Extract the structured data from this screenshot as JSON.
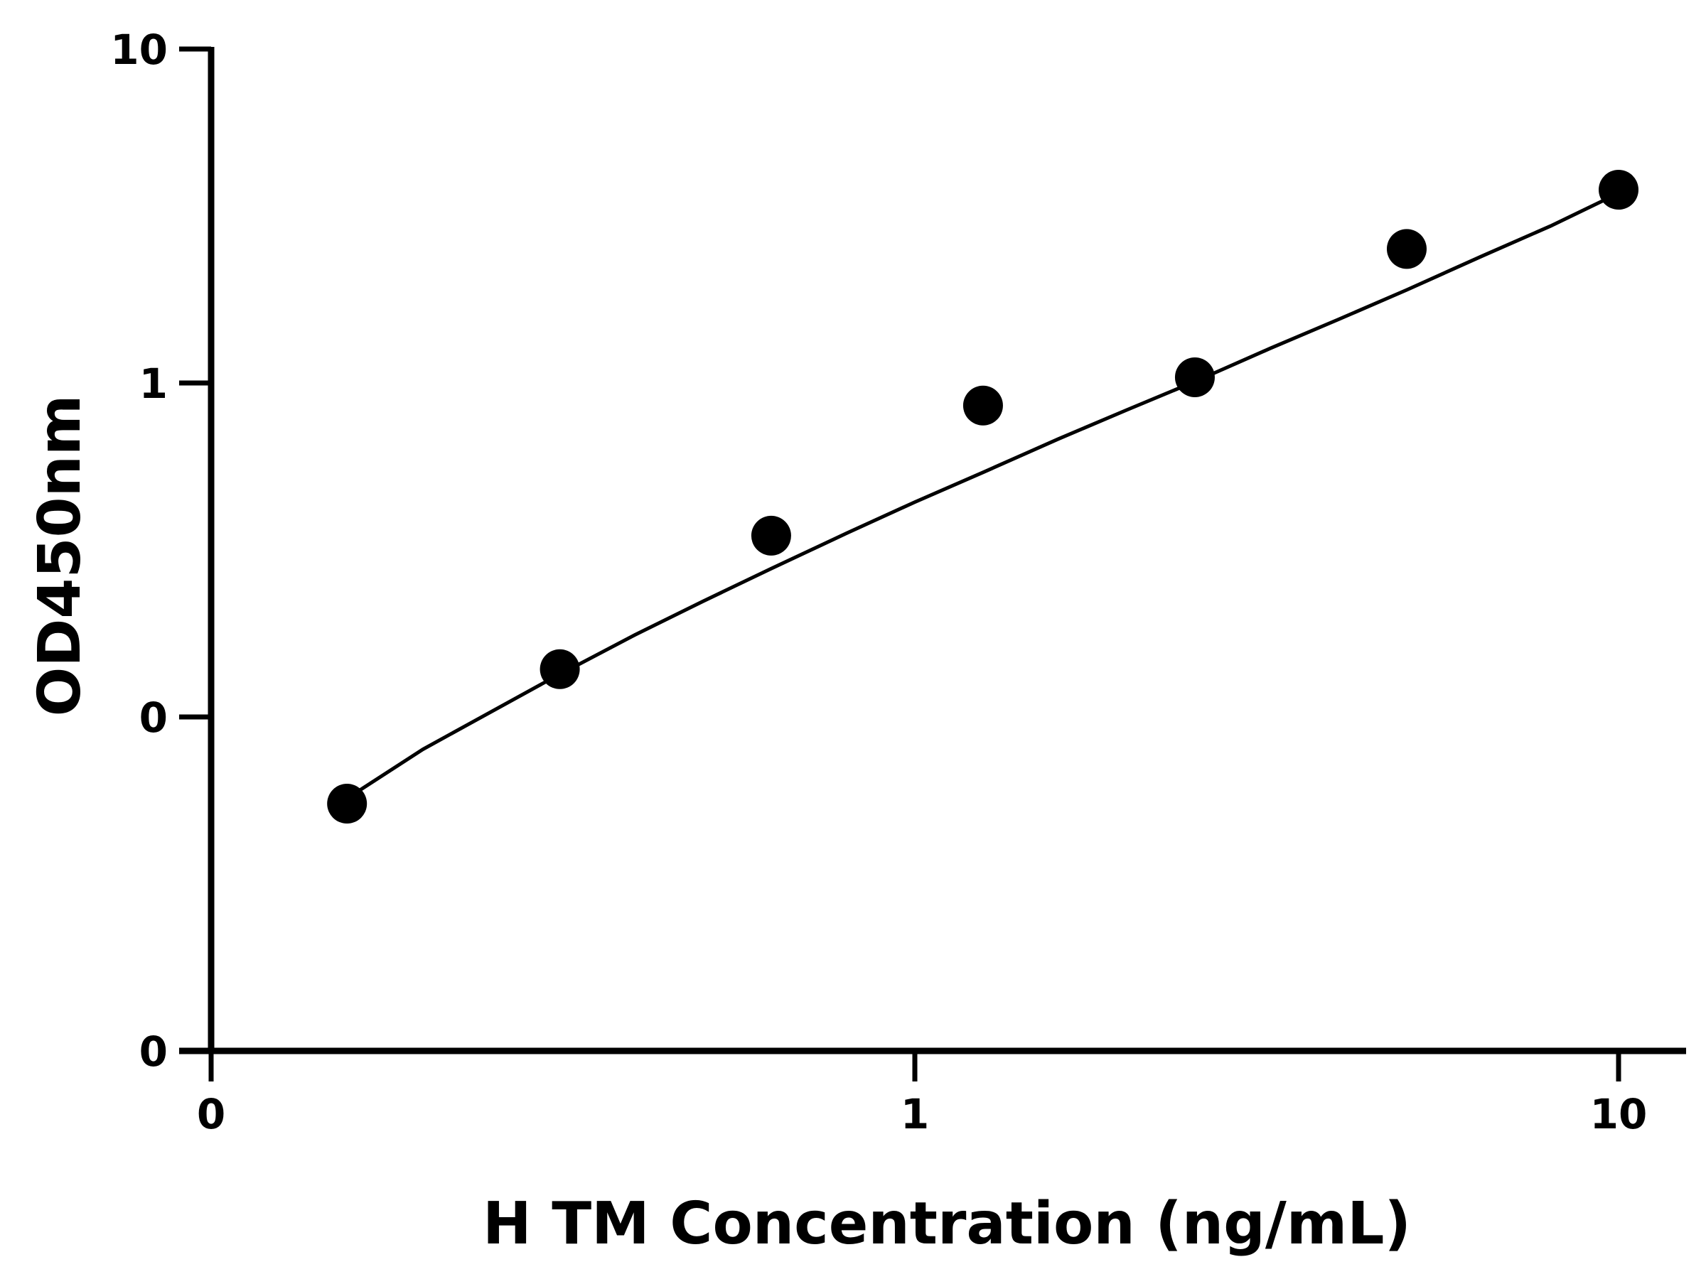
{
  "chart_data": {
    "type": "scatter",
    "title": "",
    "xlabel": "H TM Concentration (ng/mL)",
    "ylabel": "OD450nm",
    "x_scale": "log",
    "y_scale": "log",
    "x_ticks": [
      {
        "value": 0.1,
        "label": "0"
      },
      {
        "value": 1,
        "label": "1"
      },
      {
        "value": 10,
        "label": "10"
      }
    ],
    "y_ticks": [
      {
        "value": 0.01,
        "label": "0"
      },
      {
        "value": 0.1,
        "label": "0"
      },
      {
        "value": 1,
        "label": "1"
      },
      {
        "value": 10,
        "label": "10"
      }
    ],
    "xlim": [
      0.1,
      13
    ],
    "ylim": [
      0.01,
      10
    ],
    "grid": false,
    "legend": "none",
    "series": [
      {
        "x": [
          0.156,
          0.313,
          0.625,
          1.25,
          2.5,
          5,
          10
        ],
        "y": [
          0.055,
          0.139,
          0.349,
          0.856,
          1.04,
          2.52,
          3.79
        ]
      }
    ],
    "fit_curve": {
      "x": [
        0.156,
        0.2,
        0.3,
        0.4,
        0.5,
        0.625,
        0.8,
        1,
        1.25,
        1.6,
        2,
        2.5,
        3.2,
        4,
        5,
        6.4,
        8,
        10
      ],
      "y": [
        0.057,
        0.08,
        0.128,
        0.176,
        0.222,
        0.278,
        0.355,
        0.44,
        0.54,
        0.68,
        0.83,
        1.01,
        1.27,
        1.55,
        1.9,
        2.4,
        2.95,
        3.7
      ]
    },
    "colors": {
      "marks": "#000000",
      "axes": "#000000",
      "background": "#ffffff"
    }
  }
}
